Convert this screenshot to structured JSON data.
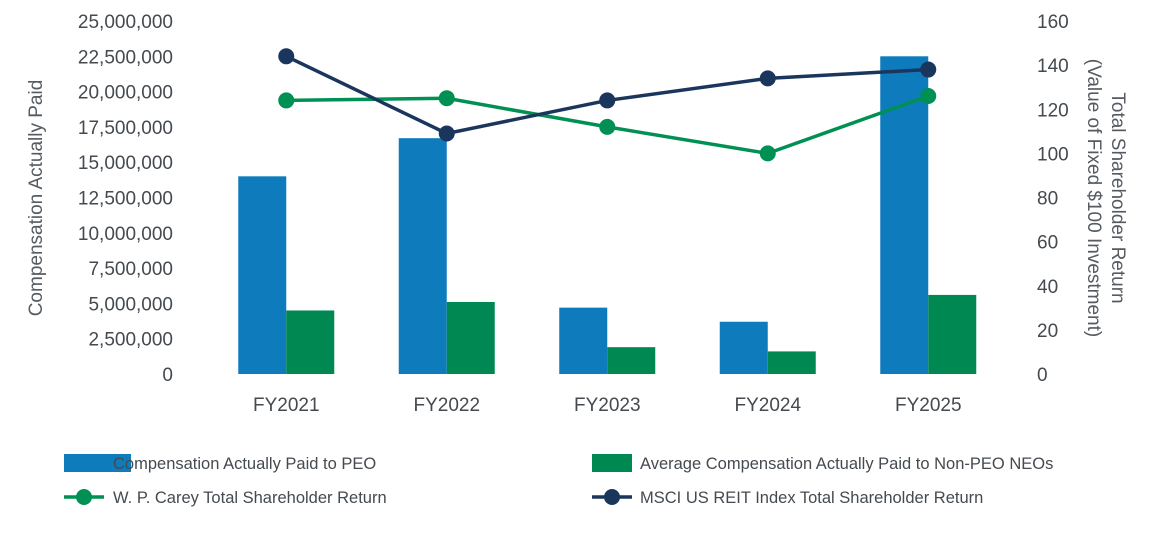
{
  "chart_data": {
    "type": "bar",
    "categories": [
      "FY2021",
      "FY2022",
      "FY2023",
      "FY2024",
      "FY2025"
    ],
    "y_left": {
      "label": "Compensation Actually Paid",
      "lim": [
        0,
        25000000
      ],
      "ticks": [
        "0",
        "2,500,000",
        "5,000,000",
        "7,500,000",
        "10,000,000",
        "12,500,000",
        "15,000,000",
        "17,500,000",
        "20,000,000",
        "22,500,000",
        "25,000,000"
      ]
    },
    "y_right": {
      "label_line1": "Total Shareholder Return",
      "label_line2": "(Value of Fixed $100 Investment)",
      "lim": [
        0,
        160
      ],
      "ticks": [
        "0",
        "20",
        "40",
        "60",
        "80",
        "100",
        "120",
        "140",
        "160"
      ]
    },
    "bar_series": [
      {
        "name": "Compensation Actually Paid to PEO",
        "color": "#0e7bbd",
        "values": [
          14000000,
          16700000,
          4700000,
          3700000,
          22500000
        ]
      },
      {
        "name": "Average Compensation Actually Paid to Non-PEO NEOs",
        "color": "#008852",
        "values": [
          4500000,
          5100000,
          1900000,
          1600000,
          5600000
        ]
      }
    ],
    "line_series": [
      {
        "name": "W. P. Carey Total Shareholder Return",
        "color": "#009053",
        "values": [
          124,
          125,
          112,
          100,
          126
        ]
      },
      {
        "name": "MSCI US REIT Index Total Shareholder Return",
        "color": "#1b365d",
        "values": [
          144,
          109,
          124,
          134,
          138
        ]
      }
    ],
    "legend_position": "bottom"
  }
}
